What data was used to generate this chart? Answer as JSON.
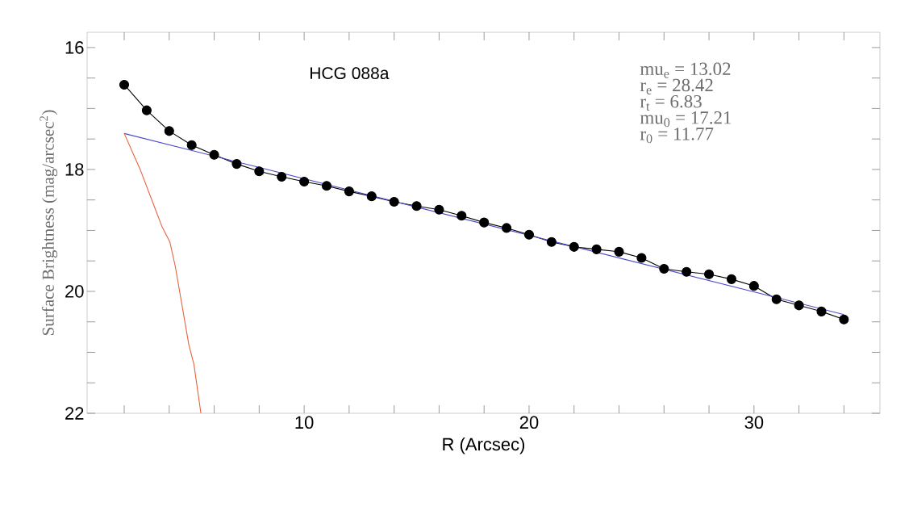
{
  "chart_data": {
    "type": "line",
    "title": "HCG 088a",
    "xlabel": "R (Arcsec)",
    "ylabel": "Surface Brightness (mag/arcsec$^{2}$)",
    "annotations": [
      "mu$_{e}$ = 13.02",
      "r$_{e}$ = 28.42",
      "r$_{t}$ = 6.83",
      "mu$_{0}$ = 17.21",
      "r$_{0}$ = 11.77"
    ],
    "xlim": [
      0.35,
      35.6
    ],
    "ylim": [
      22,
      15.75
    ],
    "xticks": [
      {
        "value": 2,
        "label": null
      },
      {
        "value": 4,
        "label": null
      },
      {
        "value": 6,
        "label": null
      },
      {
        "value": 8,
        "label": null
      },
      10,
      {
        "value": 12,
        "label": null
      },
      {
        "value": 14,
        "label": null
      },
      {
        "value": 16,
        "label": null
      },
      {
        "value": 18,
        "label": null
      },
      20,
      {
        "value": 22,
        "label": null
      },
      {
        "value": 24,
        "label": null
      },
      {
        "value": 26,
        "label": null
      },
      {
        "value": 28,
        "label": null
      },
      30,
      {
        "value": 32,
        "label": null
      },
      {
        "value": 34,
        "label": null
      }
    ],
    "yticks": [
      16,
      {
        "value": 16.5,
        "label": null
      },
      {
        "value": 17,
        "label": null
      },
      {
        "value": 17.5,
        "label": null
      },
      18,
      {
        "value": 18.5,
        "label": null
      },
      {
        "value": 19,
        "label": null
      },
      {
        "value": 19.5,
        "label": null
      },
      20,
      {
        "value": 20.5,
        "label": null
      },
      {
        "value": 21,
        "label": null
      },
      {
        "value": 21.5,
        "label": null
      },
      22
    ],
    "marker": "circle",
    "grid": false,
    "legend": false,
    "series": [
      {
        "color": "#000000",
        "x": [
          2,
          3,
          4,
          5,
          6,
          7,
          8,
          9,
          10,
          11,
          12,
          13,
          14,
          15,
          16,
          17,
          18,
          19,
          20,
          21,
          22,
          23,
          24,
          25,
          26,
          27,
          28,
          29,
          30,
          31,
          32,
          33,
          34
        ],
        "values": [
          16.61,
          17.03,
          17.37,
          17.6,
          17.76,
          17.91,
          18.03,
          18.12,
          18.2,
          18.27,
          18.36,
          18.44,
          18.53,
          18.6,
          18.66,
          18.76,
          18.87,
          18.96,
          19.07,
          19.19,
          19.27,
          19.31,
          19.35,
          19.45,
          19.63,
          19.68,
          19.72,
          19.8,
          19.91,
          20.13,
          20.23,
          20.33,
          20.46
        ]
      },
      {
        "color": "#4a4ac8",
        "marker": "none",
        "x": [
          2,
          34
        ],
        "values": [
          17.41,
          20.38
        ]
      },
      {
        "color": "#e8623c",
        "marker": "none",
        "x": [
          2,
          2.71,
          3.67,
          4.03,
          4.27,
          4.87,
          5.1,
          5.41
        ],
        "values": [
          17.41,
          18.0,
          18.93,
          19.19,
          19.59,
          20.87,
          21.2,
          22.0
        ]
      }
    ]
  }
}
